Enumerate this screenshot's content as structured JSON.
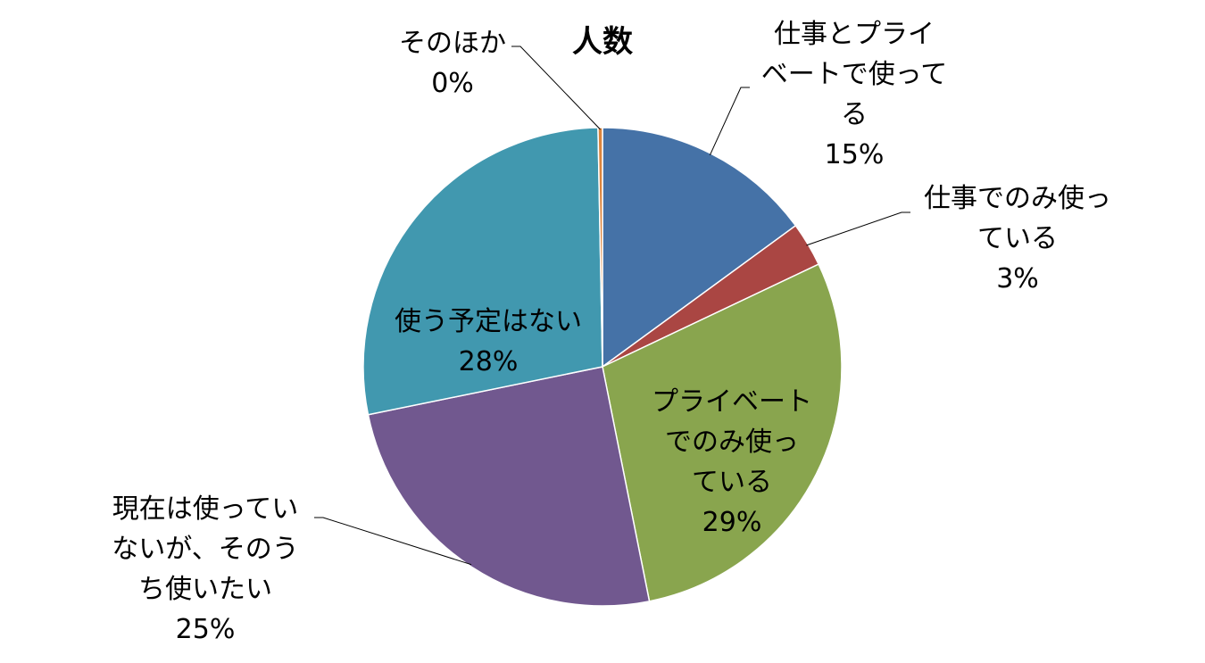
{
  "chart_data": {
    "type": "pie",
    "title": "人数",
    "slices": [
      {
        "label": "仕事とプライベートで使ってる",
        "value": 15,
        "percent_label": "15%",
        "color": "#4572A7"
      },
      {
        "label": "仕事でのみ使っている",
        "value": 3,
        "percent_label": "3%",
        "color": "#AA4643"
      },
      {
        "label": "プライベートでのみ使っている",
        "value": 29,
        "percent_label": "29%",
        "color": "#89A54E"
      },
      {
        "label": "現在は使っていないが、そのうち使いたい",
        "value": 25,
        "percent_label": "25%",
        "color": "#71588F"
      },
      {
        "label": "使う予定はない",
        "value": 28,
        "percent_label": "28%",
        "color": "#4198AF"
      },
      {
        "label": "そのほか",
        "value": 0.3,
        "percent_label": "0%",
        "color": "#DB843D"
      }
    ],
    "legend": "none"
  }
}
